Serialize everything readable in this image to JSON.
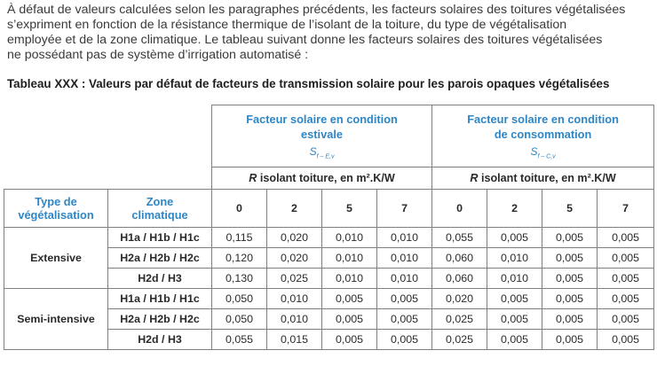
{
  "intro_lines": [
    "À défaut de valeurs calculées selon les paragraphes précédents, les facteurs solaires des toitures végétalisées",
    "s’expriment en fonction de la résistance thermique de l’isolant de la toiture, du type de végétalisation",
    "employée et de la zone climatique. Le tableau suivant donne les facteurs solaires des toitures végétalisées",
    "ne possédant pas de système d’irrigation automatisé :"
  ],
  "caption": "Tableau XXX : Valeurs par défaut de facteurs de transmission solaire pour les parois opaques végétalisées",
  "table": {
    "groups": [
      {
        "title_line1": "Facteur solaire en condition",
        "title_line2": "estivale",
        "symbol_main": "S",
        "symbol_sub": "f – E,v"
      },
      {
        "title_line1": "Facteur solaire en condition",
        "title_line2": "de consommation",
        "symbol_main": "S",
        "symbol_sub": "f – C,v"
      }
    ],
    "unit_r": "R",
    "unit_rest": " isolant toiture, en m².K/W",
    "col_type_line1": "Type de",
    "col_type_line2": "végétalisation",
    "col_zone_line1": "Zone",
    "col_zone_line2": "climatique",
    "r_values": [
      "0",
      "2",
      "5",
      "7",
      "0",
      "2",
      "5",
      "7"
    ],
    "rows": [
      {
        "type": "Extensive",
        "zone": "H1a / H1b / H1c",
        "values": [
          "0,115",
          "0,020",
          "0,010",
          "0,010",
          "0,055",
          "0,005",
          "0,005",
          "0,005"
        ]
      },
      {
        "type": "Extensive",
        "zone": "H2a / H2b / H2c",
        "values": [
          "0,120",
          "0,020",
          "0,010",
          "0,010",
          "0,060",
          "0,010",
          "0,005",
          "0,005"
        ]
      },
      {
        "type": "Extensive",
        "zone": "H2d / H3",
        "values": [
          "0,130",
          "0,025",
          "0,010",
          "0,010",
          "0,060",
          "0,010",
          "0,005",
          "0,005"
        ]
      },
      {
        "type": "Semi-intensive",
        "zone": "H1a / H1b / H1c",
        "values": [
          "0,050",
          "0,010",
          "0,005",
          "0,005",
          "0,020",
          "0,005",
          "0,005",
          "0,005"
        ]
      },
      {
        "type": "Semi-intensive",
        "zone": "H2a / H2b / H2c",
        "values": [
          "0,050",
          "0,010",
          "0,005",
          "0,005",
          "0,025",
          "0,005",
          "0,005",
          "0,005"
        ]
      },
      {
        "type": "Semi-intensive",
        "zone": "H2d / H3",
        "values": [
          "0,055",
          "0,015",
          "0,005",
          "0,005",
          "0,025",
          "0,005",
          "0,005",
          "0,005"
        ]
      }
    ]
  },
  "colors": {
    "accent_blue": "#2f86c5",
    "border": "#7f7f7f",
    "text": "#2a2a2a"
  }
}
